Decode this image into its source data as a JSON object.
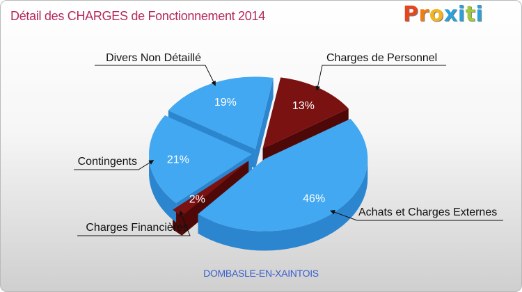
{
  "title": "Détail des CHARGES de Fonctionnement 2014",
  "logo": {
    "text": "Proxiti",
    "letter_colors": [
      "#e6461e",
      "#f07d14",
      "#f5b41e",
      "#2aa0dc",
      "#2aa0dc",
      "#a0c83c",
      "#2aa0dc"
    ]
  },
  "location": "DOMBASLE-EN-XAINTOIS",
  "colors": {
    "title": "#b5285c",
    "location": "#3a5fcd",
    "blue": "#42a8f1",
    "blue_side": "#2c86cf",
    "red": "#7a1212",
    "red_side": "#4f0808"
  },
  "chart_data": {
    "type": "pie",
    "title": "Détail des CHARGES de Fonctionnement 2014",
    "slices": [
      {
        "label": "Charges de Personnel",
        "value": 13,
        "display": "13%",
        "color": "#7a1212"
      },
      {
        "label": "Achats et Charges Externes",
        "value": 46,
        "display": "46%",
        "color": "#42a8f1"
      },
      {
        "label": "Charges Financières",
        "value": 2,
        "display": "2%",
        "color": "#7a1212"
      },
      {
        "label": "Contingents",
        "value": 21,
        "display": "21%",
        "color": "#42a8f1"
      },
      {
        "label": "Divers Non Détaillé",
        "value": 19,
        "display": "19%",
        "color": "#42a8f1"
      }
    ]
  }
}
